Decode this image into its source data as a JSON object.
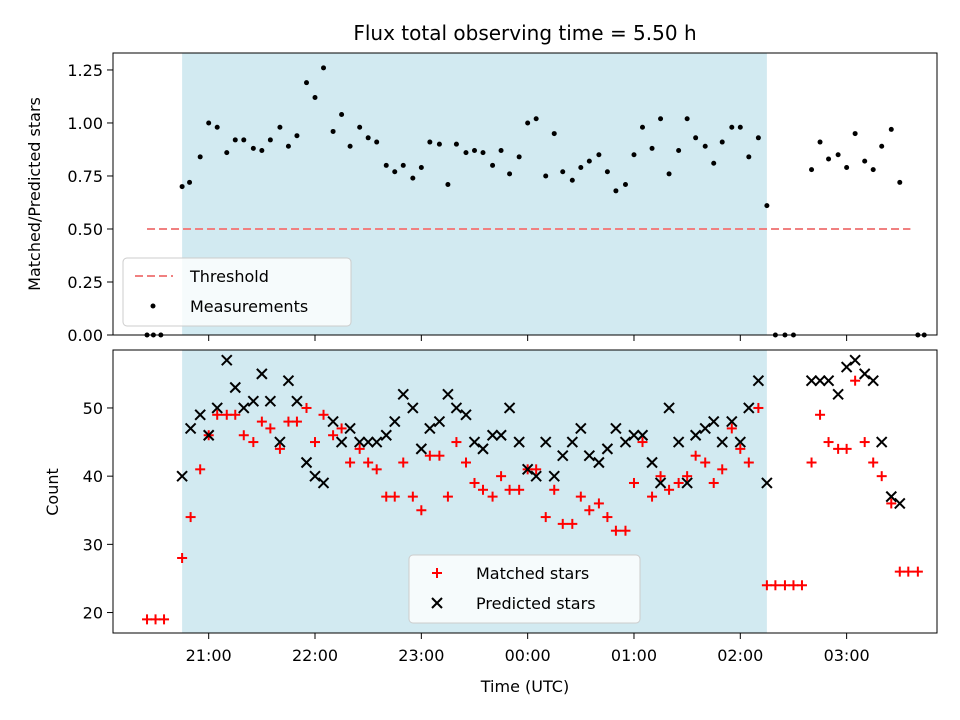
{
  "chart_data": {
    "title": "Flux total observing time = 5.50 h",
    "xlabel": "Time (UTC)",
    "x_tick_labels": [
      "21:00",
      "22:00",
      "23:00",
      "00:00",
      "01:00",
      "02:00",
      "03:00"
    ],
    "x_ticks_hours": [
      21,
      22,
      23,
      24,
      25,
      26,
      27
    ],
    "xlim_hours": [
      20.1,
      27.85
    ],
    "observing_window_hours": [
      20.75,
      26.25
    ],
    "window_color": "#add8e6",
    "top": {
      "type": "scatter",
      "ylabel": "Matched/Predicted stars",
      "ylim": [
        0,
        1.33
      ],
      "y_ticks": [
        0,
        0.25,
        0.5,
        0.75,
        1.0,
        1.25
      ],
      "y_tick_labels": [
        "0.00",
        "0.25",
        "0.50",
        "0.75",
        "1.00",
        "1.25"
      ],
      "threshold": {
        "name": "Threshold",
        "value": 0.5,
        "x_range": [
          20.42,
          27.6
        ],
        "color": "#f08080"
      },
      "measurements_name": "Measurements",
      "measurements": [
        [
          20.42,
          0.0
        ],
        [
          20.48,
          0.0
        ],
        [
          20.55,
          0.0
        ],
        [
          20.75,
          0.7
        ],
        [
          20.82,
          0.72
        ],
        [
          20.92,
          0.84
        ],
        [
          21.0,
          1.0
        ],
        [
          21.08,
          0.98
        ],
        [
          21.17,
          0.86
        ],
        [
          21.25,
          0.92
        ],
        [
          21.33,
          0.92
        ],
        [
          21.42,
          0.88
        ],
        [
          21.5,
          0.87
        ],
        [
          21.58,
          0.92
        ],
        [
          21.67,
          0.98
        ],
        [
          21.75,
          0.89
        ],
        [
          21.83,
          0.94
        ],
        [
          21.92,
          1.19
        ],
        [
          22.0,
          1.12
        ],
        [
          22.08,
          1.26
        ],
        [
          22.17,
          0.96
        ],
        [
          22.25,
          1.04
        ],
        [
          22.33,
          0.89
        ],
        [
          22.42,
          0.98
        ],
        [
          22.5,
          0.93
        ],
        [
          22.58,
          0.91
        ],
        [
          22.67,
          0.8
        ],
        [
          22.75,
          0.77
        ],
        [
          22.83,
          0.8
        ],
        [
          22.92,
          0.74
        ],
        [
          23.0,
          0.79
        ],
        [
          23.08,
          0.91
        ],
        [
          23.17,
          0.9
        ],
        [
          23.25,
          0.71
        ],
        [
          23.33,
          0.9
        ],
        [
          23.42,
          0.86
        ],
        [
          23.5,
          0.87
        ],
        [
          23.58,
          0.86
        ],
        [
          23.67,
          0.8
        ],
        [
          23.75,
          0.87
        ],
        [
          23.83,
          0.76
        ],
        [
          23.92,
          0.84
        ],
        [
          24.0,
          1.0
        ],
        [
          24.08,
          1.02
        ],
        [
          24.17,
          0.75
        ],
        [
          24.25,
          0.95
        ],
        [
          24.33,
          0.77
        ],
        [
          24.42,
          0.73
        ],
        [
          24.5,
          0.79
        ],
        [
          24.58,
          0.82
        ],
        [
          24.67,
          0.85
        ],
        [
          24.75,
          0.77
        ],
        [
          24.83,
          0.68
        ],
        [
          24.92,
          0.71
        ],
        [
          25.0,
          0.85
        ],
        [
          25.08,
          0.98
        ],
        [
          25.17,
          0.88
        ],
        [
          25.25,
          1.02
        ],
        [
          25.33,
          0.76
        ],
        [
          25.42,
          0.87
        ],
        [
          25.5,
          1.02
        ],
        [
          25.58,
          0.93
        ],
        [
          25.67,
          0.89
        ],
        [
          25.75,
          0.81
        ],
        [
          25.83,
          0.91
        ],
        [
          25.92,
          0.98
        ],
        [
          26.0,
          0.98
        ],
        [
          26.08,
          0.84
        ],
        [
          26.17,
          0.93
        ],
        [
          26.25,
          0.61
        ],
        [
          26.33,
          0.0
        ],
        [
          26.42,
          0.0
        ],
        [
          26.5,
          0.0
        ],
        [
          26.67,
          0.78
        ],
        [
          26.75,
          0.91
        ],
        [
          26.83,
          0.83
        ],
        [
          26.92,
          0.85
        ],
        [
          27.0,
          0.79
        ],
        [
          27.08,
          0.95
        ],
        [
          27.17,
          0.82
        ],
        [
          27.25,
          0.78
        ],
        [
          27.33,
          0.89
        ],
        [
          27.42,
          0.97
        ],
        [
          27.5,
          0.72
        ],
        [
          27.67,
          0.0
        ],
        [
          27.73,
          0.0
        ]
      ]
    },
    "bottom": {
      "type": "scatter",
      "ylabel": "Count",
      "ylim": [
        17,
        58.5
      ],
      "y_ticks": [
        20,
        30,
        40,
        50
      ],
      "y_tick_labels": [
        "20",
        "30",
        "40",
        "50"
      ],
      "series": [
        {
          "name": "Matched stars",
          "marker": "plus",
          "color": "#ff0000",
          "points": [
            [
              20.42,
              19
            ],
            [
              20.5,
              19
            ],
            [
              20.58,
              19
            ],
            [
              20.75,
              28
            ],
            [
              20.83,
              34
            ],
            [
              20.92,
              41
            ],
            [
              21.0,
              46
            ],
            [
              21.08,
              49
            ],
            [
              21.17,
              49
            ],
            [
              21.25,
              49
            ],
            [
              21.33,
              46
            ],
            [
              21.42,
              45
            ],
            [
              21.5,
              48
            ],
            [
              21.58,
              47
            ],
            [
              21.67,
              44
            ],
            [
              21.75,
              48
            ],
            [
              21.83,
              48
            ],
            [
              21.92,
              50
            ],
            [
              22.0,
              45
            ],
            [
              22.08,
              49
            ],
            [
              22.17,
              46
            ],
            [
              22.25,
              47
            ],
            [
              22.33,
              42
            ],
            [
              22.42,
              44
            ],
            [
              22.5,
              42
            ],
            [
              22.58,
              41
            ],
            [
              22.67,
              37
            ],
            [
              22.75,
              37
            ],
            [
              22.83,
              42
            ],
            [
              22.92,
              37
            ],
            [
              23.0,
              35
            ],
            [
              23.08,
              43
            ],
            [
              23.17,
              43
            ],
            [
              23.25,
              37
            ],
            [
              23.33,
              45
            ],
            [
              23.42,
              42
            ],
            [
              23.5,
              39
            ],
            [
              23.58,
              38
            ],
            [
              23.67,
              37
            ],
            [
              23.75,
              40
            ],
            [
              23.83,
              38
            ],
            [
              23.92,
              38
            ],
            [
              24.0,
              41
            ],
            [
              24.08,
              41
            ],
            [
              24.17,
              34
            ],
            [
              24.25,
              38
            ],
            [
              24.33,
              33
            ],
            [
              24.42,
              33
            ],
            [
              24.5,
              37
            ],
            [
              24.58,
              35
            ],
            [
              24.67,
              36
            ],
            [
              24.75,
              34
            ],
            [
              24.83,
              32
            ],
            [
              24.92,
              32
            ],
            [
              25.0,
              39
            ],
            [
              25.08,
              45
            ],
            [
              25.17,
              37
            ],
            [
              25.25,
              40
            ],
            [
              25.33,
              38
            ],
            [
              25.42,
              39
            ],
            [
              25.5,
              40
            ],
            [
              25.58,
              43
            ],
            [
              25.67,
              42
            ],
            [
              25.75,
              39
            ],
            [
              25.83,
              41
            ],
            [
              25.92,
              47
            ],
            [
              26.0,
              44
            ],
            [
              26.08,
              42
            ],
            [
              26.17,
              50
            ],
            [
              26.25,
              24
            ],
            [
              26.33,
              24
            ],
            [
              26.42,
              24
            ],
            [
              26.5,
              24
            ],
            [
              26.58,
              24
            ],
            [
              26.67,
              42
            ],
            [
              26.75,
              49
            ],
            [
              26.83,
              45
            ],
            [
              26.92,
              44
            ],
            [
              27.0,
              44
            ],
            [
              27.08,
              54
            ],
            [
              27.17,
              45
            ],
            [
              27.25,
              42
            ],
            [
              27.33,
              40
            ],
            [
              27.42,
              36
            ],
            [
              27.5,
              26
            ],
            [
              27.58,
              26
            ],
            [
              27.67,
              26
            ]
          ]
        },
        {
          "name": "Predicted stars",
          "marker": "x",
          "color": "#000000",
          "points": [
            [
              20.75,
              40
            ],
            [
              20.83,
              47
            ],
            [
              20.92,
              49
            ],
            [
              21.0,
              46
            ],
            [
              21.08,
              50
            ],
            [
              21.17,
              57
            ],
            [
              21.25,
              53
            ],
            [
              21.33,
              50
            ],
            [
              21.42,
              51
            ],
            [
              21.5,
              55
            ],
            [
              21.58,
              51
            ],
            [
              21.67,
              45
            ],
            [
              21.75,
              54
            ],
            [
              21.83,
              51
            ],
            [
              21.92,
              42
            ],
            [
              22.0,
              40
            ],
            [
              22.08,
              39
            ],
            [
              22.17,
              48
            ],
            [
              22.25,
              45
            ],
            [
              22.33,
              47
            ],
            [
              22.42,
              45
            ],
            [
              22.5,
              45
            ],
            [
              22.58,
              45
            ],
            [
              22.67,
              46
            ],
            [
              22.75,
              48
            ],
            [
              22.83,
              52
            ],
            [
              22.92,
              50
            ],
            [
              23.0,
              44
            ],
            [
              23.08,
              47
            ],
            [
              23.17,
              48
            ],
            [
              23.25,
              52
            ],
            [
              23.33,
              50
            ],
            [
              23.42,
              49
            ],
            [
              23.5,
              45
            ],
            [
              23.58,
              44
            ],
            [
              23.67,
              46
            ],
            [
              23.75,
              46
            ],
            [
              23.83,
              50
            ],
            [
              23.92,
              45
            ],
            [
              24.0,
              41
            ],
            [
              24.08,
              40
            ],
            [
              24.17,
              45
            ],
            [
              24.25,
              40
            ],
            [
              24.33,
              43
            ],
            [
              24.42,
              45
            ],
            [
              24.5,
              47
            ],
            [
              24.58,
              43
            ],
            [
              24.67,
              42
            ],
            [
              24.75,
              44
            ],
            [
              24.83,
              47
            ],
            [
              24.92,
              45
            ],
            [
              25.0,
              46
            ],
            [
              25.08,
              46
            ],
            [
              25.17,
              42
            ],
            [
              25.25,
              39
            ],
            [
              25.33,
              50
            ],
            [
              25.42,
              45
            ],
            [
              25.5,
              39
            ],
            [
              25.58,
              46
            ],
            [
              25.67,
              47
            ],
            [
              25.75,
              48
            ],
            [
              25.83,
              45
            ],
            [
              25.92,
              48
            ],
            [
              26.0,
              45
            ],
            [
              26.08,
              50
            ],
            [
              26.17,
              54
            ],
            [
              26.25,
              39
            ],
            [
              26.67,
              54
            ],
            [
              26.75,
              54
            ],
            [
              26.83,
              54
            ],
            [
              26.92,
              52
            ],
            [
              27.0,
              56
            ],
            [
              27.08,
              57
            ],
            [
              27.17,
              55
            ],
            [
              27.25,
              54
            ],
            [
              27.33,
              45
            ],
            [
              27.42,
              37
            ],
            [
              27.5,
              36
            ]
          ]
        }
      ]
    }
  }
}
